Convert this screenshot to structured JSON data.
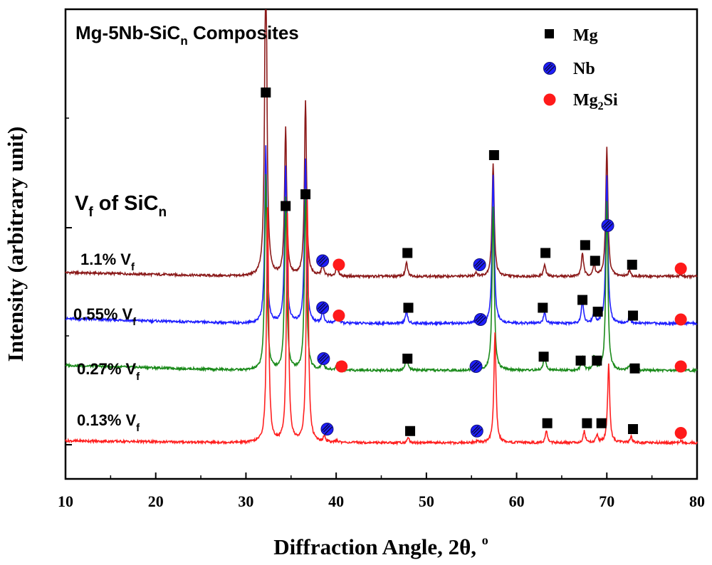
{
  "chart_data": {
    "type": "line",
    "title": "Mg-5Nb-SiC",
    "title_sub": "n",
    "title_rest": " Composites",
    "xlabel": "Diffraction Angle, 2θ, ",
    "xlabel_sup": "o",
    "ylabel": "Intensity (arbitrary unit)",
    "xlim": [
      10,
      80
    ],
    "xticks": [
      10,
      20,
      30,
      40,
      50,
      60,
      70,
      80
    ],
    "ylim": [
      0,
      100
    ],
    "y_ticks_visible": false,
    "group_label": {
      "main": "V",
      "sub": "f",
      "rest": " of SiC",
      "sub2": "n"
    },
    "legend": [
      {
        "marker": "square",
        "label": "Mg",
        "sub": ""
      },
      {
        "marker": "hatched-circle",
        "label": "Nb",
        "sub": ""
      },
      {
        "marker": "circle",
        "label": "Mg",
        "sub": "2",
        "rest": "Si"
      }
    ],
    "colors": {
      "1.1": "#8b1a1a",
      "0.55": "#1f1fff",
      "0.27": "#1a8a1a",
      "0.13": "#ff2020",
      "Mg_marker": "#000000",
      "Nb_marker": "#1f1fff",
      "Mg2Si_marker": "#ff1a1a"
    },
    "peak_positions": {
      "Mg": [
        32.2,
        34.4,
        36.6,
        47.8,
        57.4,
        63.1,
        67.3,
        68.6,
        70.0,
        72.5
      ],
      "Nb": [
        38.5,
        55.5,
        70.0
      ],
      "Mg2Si": [
        40.1,
        78.2
      ]
    },
    "peak_widths": 0.14,
    "series": [
      {
        "name": "1.1% Vf",
        "label_main": "1.1% V",
        "label_sub": "f",
        "baseline": 43,
        "slope_start": 1.0,
        "peaks": [
          [
            32.2,
            90
          ],
          [
            34.4,
            38
          ],
          [
            36.6,
            45
          ],
          [
            38.5,
            3
          ],
          [
            40.1,
            3
          ],
          [
            47.8,
            3.5
          ],
          [
            55.5,
            1
          ],
          [
            57.4,
            29
          ],
          [
            63.1,
            3
          ],
          [
            67.3,
            6
          ],
          [
            68.6,
            3
          ],
          [
            70.0,
            33
          ],
          [
            72.5,
            1.5
          ],
          [
            78.2,
            0.5
          ]
        ],
        "markers": [
          {
            "type": "Mg",
            "x": 32.2,
            "y": 90
          },
          {
            "type": "Mg",
            "x": 34.4,
            "y": 61
          },
          {
            "type": "Mg",
            "x": 36.6,
            "y": 64
          },
          {
            "type": "Nb",
            "x": 38.5,
            "y": 47
          },
          {
            "type": "Mg2Si",
            "x": 40.3,
            "y": 46
          },
          {
            "type": "Mg",
            "x": 47.9,
            "y": 49
          },
          {
            "type": "Nb",
            "x": 55.9,
            "y": 46
          },
          {
            "type": "Mg",
            "x": 57.5,
            "y": 74
          },
          {
            "type": "Mg",
            "x": 63.2,
            "y": 49
          },
          {
            "type": "Mg",
            "x": 67.6,
            "y": 51
          },
          {
            "type": "Mg",
            "x": 68.7,
            "y": 47
          },
          {
            "type": "Nb",
            "x": 70.1,
            "y": 56
          },
          {
            "type": "Mg",
            "x": 72.8,
            "y": 46
          },
          {
            "type": "Mg2Si",
            "x": 78.2,
            "y": 45
          }
        ]
      },
      {
        "name": "0.55% Vf",
        "label_main": "0.55% V",
        "label_sub": "f",
        "baseline": 31,
        "slope_start": 1.2,
        "peaks": [
          [
            32.2,
            45
          ],
          [
            34.4,
            40
          ],
          [
            36.6,
            42
          ],
          [
            38.5,
            3
          ],
          [
            40.1,
            2
          ],
          [
            47.8,
            3
          ],
          [
            55.5,
            1
          ],
          [
            57.4,
            38
          ],
          [
            63.1,
            3
          ],
          [
            67.3,
            6
          ],
          [
            68.6,
            3
          ],
          [
            70.0,
            38
          ],
          [
            72.5,
            1.5
          ],
          [
            78.2,
            0.5
          ]
        ],
        "markers": [
          {
            "type": "Nb",
            "x": 38.5,
            "y": 35
          },
          {
            "type": "Mg2Si",
            "x": 40.3,
            "y": 33
          },
          {
            "type": "Mg",
            "x": 48.0,
            "y": 35
          },
          {
            "type": "Nb",
            "x": 56.0,
            "y": 32
          },
          {
            "type": "Mg",
            "x": 62.9,
            "y": 35
          },
          {
            "type": "Mg",
            "x": 67.3,
            "y": 37
          },
          {
            "type": "Mg",
            "x": 69.0,
            "y": 34
          },
          {
            "type": "Mg",
            "x": 72.9,
            "y": 33
          },
          {
            "type": "Mg2Si",
            "x": 78.2,
            "y": 32
          }
        ]
      },
      {
        "name": "0.27% Vf",
        "label_main": "0.27% V",
        "label_sub": "f",
        "baseline": 19,
        "slope_start": 1.3,
        "peaks": [
          [
            32.2,
            50
          ],
          [
            34.4,
            44
          ],
          [
            36.6,
            46
          ],
          [
            38.5,
            3
          ],
          [
            40.1,
            1.5
          ],
          [
            47.8,
            4
          ],
          [
            55.5,
            1
          ],
          [
            57.4,
            42
          ],
          [
            63.1,
            4
          ],
          [
            67.3,
            3
          ],
          [
            68.6,
            3.5
          ],
          [
            70.0,
            43
          ],
          [
            72.5,
            1.2
          ],
          [
            78.2,
            0.5
          ]
        ],
        "markers": [
          {
            "type": "Nb",
            "x": 38.6,
            "y": 22
          },
          {
            "type": "Mg2Si",
            "x": 40.6,
            "y": 20
          },
          {
            "type": "Mg",
            "x": 47.9,
            "y": 22
          },
          {
            "type": "Nb",
            "x": 55.5,
            "y": 20
          },
          {
            "type": "Mg",
            "x": 63.0,
            "y": 22.5
          },
          {
            "type": "Mg",
            "x": 67.1,
            "y": 21.5
          },
          {
            "type": "Mg",
            "x": 68.9,
            "y": 21.5
          },
          {
            "type": "Mg",
            "x": 73.1,
            "y": 19.5
          },
          {
            "type": "Mg2Si",
            "x": 78.2,
            "y": 20
          }
        ]
      },
      {
        "name": "0.13% Vf",
        "label_main": "0.13% V",
        "label_sub": "f",
        "baseline": 0.5,
        "slope_start": 0.5,
        "peaks": [
          [
            32.4,
            60
          ],
          [
            34.6,
            58
          ],
          [
            36.8,
            62
          ],
          [
            38.7,
            1.5
          ],
          [
            40.1,
            0.5
          ],
          [
            48.0,
            1.2
          ],
          [
            55.7,
            0.5
          ],
          [
            57.6,
            28
          ],
          [
            63.3,
            3
          ],
          [
            67.5,
            3
          ],
          [
            68.9,
            2
          ],
          [
            70.2,
            20
          ],
          [
            72.7,
            1.5
          ],
          [
            78.2,
            0.5
          ]
        ],
        "markers": [
          {
            "type": "Nb",
            "x": 39.0,
            "y": 4
          },
          {
            "type": "Mg",
            "x": 48.2,
            "y": 3.5
          },
          {
            "type": "Nb",
            "x": 55.6,
            "y": 3.5
          },
          {
            "type": "Mg",
            "x": 63.4,
            "y": 5.5
          },
          {
            "type": "Mg",
            "x": 67.8,
            "y": 5.5
          },
          {
            "type": "Mg",
            "x": 69.4,
            "y": 5.5
          },
          {
            "type": "Mg",
            "x": 72.9,
            "y": 4
          },
          {
            "type": "Mg2Si",
            "x": 78.2,
            "y": 3
          }
        ]
      }
    ]
  }
}
